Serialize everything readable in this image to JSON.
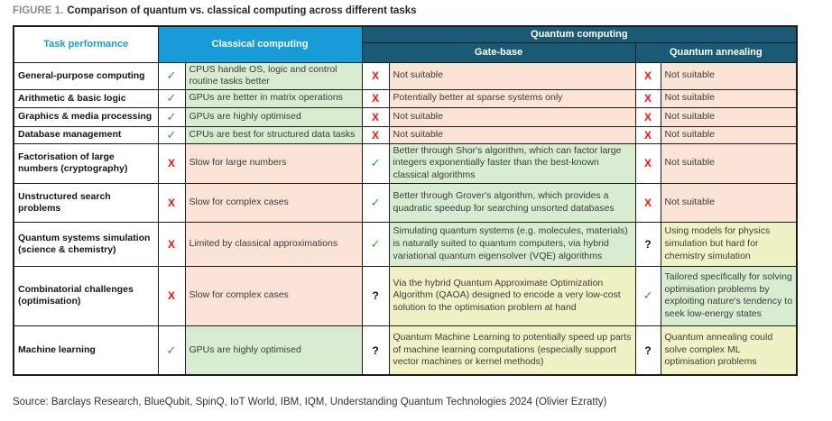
{
  "title": {
    "prefix": "FIGURE 1.",
    "text": "Comparison of quantum vs. classical computing across different tasks"
  },
  "header": {
    "task": "Task performance",
    "classical": "Classical computing",
    "quantum": "Quantum computing",
    "gate": "Gate-base",
    "annealing": "Quantum annealing"
  },
  "marks": {
    "yes": "✓",
    "no": "X",
    "maybe": "?"
  },
  "colors": {
    "classical_header_bg": "#189cd7",
    "quantum_header_bg": "#1b5a74",
    "positive_cell_bg": "#d8ecd0",
    "negative_cell_bg": "#fbe3d6",
    "mixed_cell_bg": "#f0f2c6",
    "check_green": "#2fa12e",
    "cross_red": "#fb0d0d"
  },
  "rows": [
    {
      "task": "General-purpose computing",
      "classical": {
        "mark": "yes",
        "tone": "green",
        "text": "CPUS handle OS, logic and control routine tasks better"
      },
      "gate": {
        "mark": "no",
        "tone": "pink",
        "text": "Not suitable"
      },
      "annealing": {
        "mark": "no",
        "tone": "pink",
        "text": "Not suitable"
      }
    },
    {
      "task": "Arithmetic & basic logic",
      "classical": {
        "mark": "yes",
        "tone": "green",
        "text": "GPUs are better in matrix operations"
      },
      "gate": {
        "mark": "no",
        "tone": "pink",
        "text": "Potentially better at sparse systems only"
      },
      "annealing": {
        "mark": "no",
        "tone": "pink",
        "text": "Not suitable"
      }
    },
    {
      "task": "Graphics & media processing",
      "classical": {
        "mark": "yes",
        "tone": "green",
        "text": "GPUs are highly optimised"
      },
      "gate": {
        "mark": "no",
        "tone": "pink",
        "text": "Not suitable"
      },
      "annealing": {
        "mark": "no",
        "tone": "pink",
        "text": "Not suitable"
      }
    },
    {
      "task": "Database management",
      "classical": {
        "mark": "yes",
        "tone": "green",
        "text": "CPUs are best for structured data tasks"
      },
      "gate": {
        "mark": "no",
        "tone": "pink",
        "text": "Not suitable"
      },
      "annealing": {
        "mark": "no",
        "tone": "pink",
        "text": "Not suitable"
      }
    },
    {
      "task": "Factorisation of large numbers (cryptography)",
      "classical": {
        "mark": "no",
        "tone": "pink",
        "text": "Slow for large numbers"
      },
      "gate": {
        "mark": "yes",
        "tone": "green",
        "text": "Better through Shor's algorithm, which can factor large integers exponentially faster than the best-known classical algorithms"
      },
      "annealing": {
        "mark": "no",
        "tone": "pink",
        "text": "Not suitable"
      }
    },
    {
      "task": "Unstructured search problems",
      "classical": {
        "mark": "no",
        "tone": "pink",
        "text": "Slow for complex cases"
      },
      "gate": {
        "mark": "yes",
        "tone": "green",
        "text": "Better through Grover's algorithm, which provides a quadratic speedup for searching unsorted databases"
      },
      "annealing": {
        "mark": "no",
        "tone": "pink",
        "text": "Not suitable"
      }
    },
    {
      "task": "Quantum systems simulation (science & chemistry)",
      "classical": {
        "mark": "no",
        "tone": "pink",
        "text": "Limited by classical approximations"
      },
      "gate": {
        "mark": "yes",
        "tone": "green",
        "text": "Simulating quantum systems (e.g. molecules, materials) is naturally suited to quantum computers, via hybrid variational quantum eigensolver (VQE) algorithms"
      },
      "annealing": {
        "mark": "maybe",
        "tone": "yellow",
        "text": "Using models for physics simulation but hard for chemistry simulation"
      }
    },
    {
      "task": "Combinatorial challenges (optimisation)",
      "classical": {
        "mark": "no",
        "tone": "pink",
        "text": "Slow for complex cases"
      },
      "gate": {
        "mark": "maybe",
        "tone": "yellow",
        "text": "Via the hybrid Quantum Approximate Optimization Algorithm (QAOA) designed to encode a very low-cost solution to the optimisation problem at hand"
      },
      "annealing": {
        "mark": "yes",
        "tone": "green",
        "text": "Tailored specifically for solving optimisation problems by exploiting nature's tendency to seek low-energy states"
      }
    },
    {
      "task": "Machine learning",
      "classical": {
        "mark": "yes",
        "tone": "green",
        "text": "GPUs are highly optimised"
      },
      "gate": {
        "mark": "maybe",
        "tone": "yellow",
        "text": "Quantum Machine Learning to potentially speed up parts of machine learning computations (especially support vector machines or kernel methods)"
      },
      "annealing": {
        "mark": "maybe",
        "tone": "yellow",
        "text": "Quantum annealing could solve complex ML optimisation problems"
      }
    }
  ],
  "source": "Source: Barclays Research, BlueQubit, SpinQ, IoT World, IBM, IQM, Understanding Quantum Technologies 2024 (Olivier Ezratty)"
}
